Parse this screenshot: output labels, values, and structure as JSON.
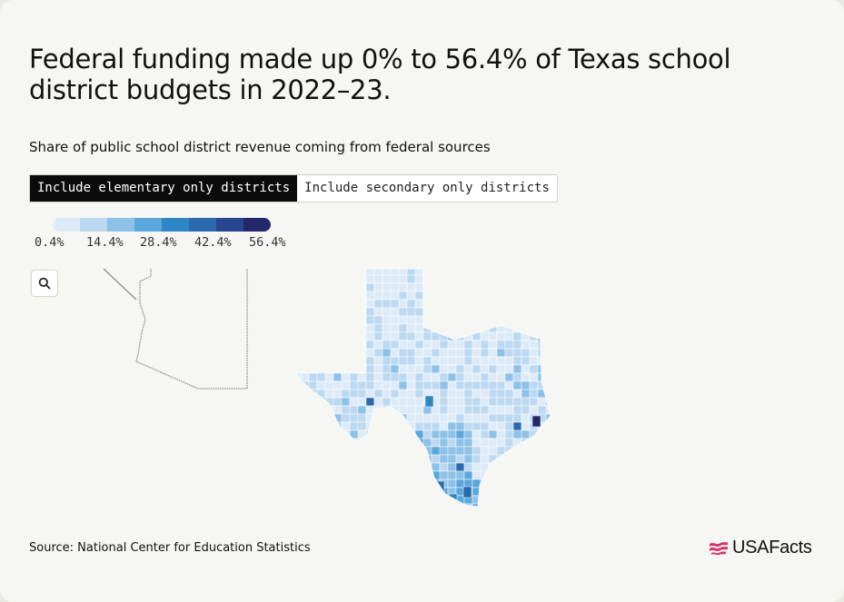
{
  "header": {
    "title": "Federal funding made up 0% to 56.4% of Texas school district budgets in 2022–23.",
    "subtitle": "Share of public school district revenue coming from federal sources"
  },
  "toggle": {
    "options": [
      {
        "label": "Include elementary only districts",
        "active": true
      },
      {
        "label": "Include secondary only districts",
        "active": false
      }
    ]
  },
  "legend": {
    "colors": [
      "#ddebf8",
      "#bcd9f1",
      "#8ec1e8",
      "#5aa7dc",
      "#2f86c6",
      "#2a6aad",
      "#27468f",
      "#22286a"
    ],
    "labels": [
      "0.4%",
      "14.4%",
      "28.4%",
      "42.4%",
      "56.4%"
    ]
  },
  "map": {
    "zoom_icon": "search-icon",
    "min_value_percent": 0.4,
    "max_value_percent": 56.4
  },
  "footer": {
    "source": "Source: National Center for Education Statistics",
    "logo_text": "USAFacts",
    "logo_color": "#d6336c"
  }
}
